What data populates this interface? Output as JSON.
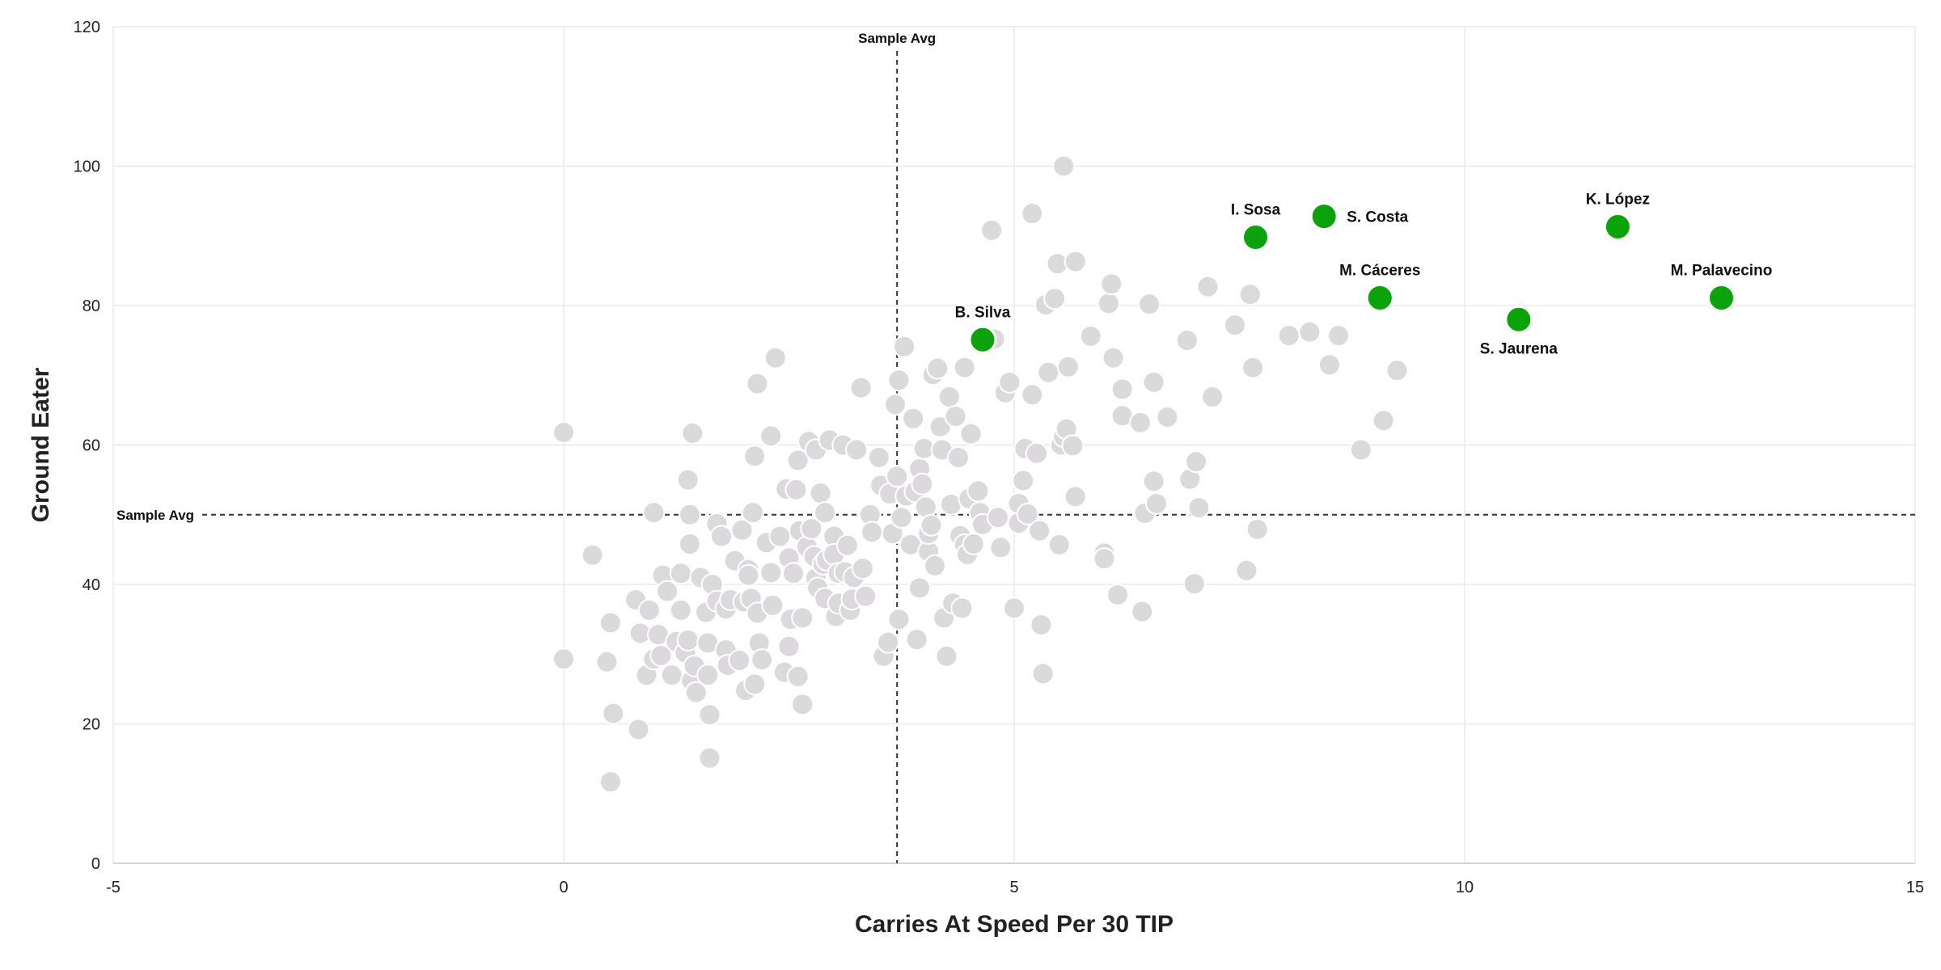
{
  "chart_data": {
    "type": "scatter",
    "xlabel": "Carries At Speed Per 30 TIP",
    "ylabel": "Ground Eater",
    "xlim": [
      -5,
      15
    ],
    "ylim": [
      0,
      120
    ],
    "xticks": [
      "-5",
      "0",
      "5",
      "10",
      "15"
    ],
    "yticks": [
      "0",
      "20",
      "40",
      "60",
      "80",
      "100",
      "120"
    ],
    "grid": true,
    "colors": {
      "background_points": "#dcd9dc",
      "highlight_points": "#0aa30a"
    },
    "reference_lines": {
      "x_avg": {
        "value": 3.7,
        "label": "Sample Avg"
      },
      "y_avg": {
        "value": 50,
        "label": "Sample Avg"
      }
    },
    "highlighted": [
      {
        "name": "B. Silva",
        "x": 4.65,
        "y": 75.1,
        "label_pos": "above"
      },
      {
        "name": "I. Sosa",
        "x": 7.68,
        "y": 89.8,
        "label_pos": "above"
      },
      {
        "name": "S. Costa",
        "x": 8.44,
        "y": 92.8,
        "label_pos": "right"
      },
      {
        "name": "M. Cáceres",
        "x": 9.06,
        "y": 81.1,
        "label_pos": "above"
      },
      {
        "name": "S. Jaurena",
        "x": 10.6,
        "y": 78.0,
        "label_pos": "below"
      },
      {
        "name": "K. López",
        "x": 11.7,
        "y": 91.3,
        "label_pos": "above"
      },
      {
        "name": "M. Palavecino",
        "x": 12.85,
        "y": 81.1,
        "label_pos": "above"
      }
    ],
    "points": [
      [
        0.0,
        61.8
      ],
      [
        0.0,
        29.3
      ],
      [
        0.32,
        44.2
      ],
      [
        0.48,
        28.9
      ],
      [
        0.52,
        34.5
      ],
      [
        0.55,
        21.5
      ],
      [
        0.52,
        11.7
      ],
      [
        0.83,
        19.2
      ],
      [
        0.8,
        37.8
      ],
      [
        0.85,
        33.0
      ],
      [
        0.92,
        27.0
      ],
      [
        0.95,
        36.3
      ],
      [
        1.0,
        29.3
      ],
      [
        1.0,
        50.3
      ],
      [
        1.05,
        32.8
      ],
      [
        1.08,
        29.8
      ],
      [
        1.1,
        41.3
      ],
      [
        1.15,
        39.0
      ],
      [
        1.2,
        27.0
      ],
      [
        1.25,
        31.8
      ],
      [
        1.3,
        36.3
      ],
      [
        1.3,
        41.6
      ],
      [
        1.35,
        30.2
      ],
      [
        1.38,
        32.0
      ],
      [
        1.38,
        55.0
      ],
      [
        1.4,
        45.8
      ],
      [
        1.4,
        50.0
      ],
      [
        1.42,
        26.2
      ],
      [
        1.43,
        61.7
      ],
      [
        1.45,
        28.3
      ],
      [
        1.47,
        24.5
      ],
      [
        1.52,
        41.0
      ],
      [
        1.58,
        36.0
      ],
      [
        1.6,
        31.6
      ],
      [
        1.6,
        27.0
      ],
      [
        1.62,
        15.1
      ],
      [
        1.62,
        21.3
      ],
      [
        1.65,
        40.0
      ],
      [
        1.7,
        37.6
      ],
      [
        1.7,
        48.7
      ],
      [
        1.75,
        46.9
      ],
      [
        1.8,
        36.5
      ],
      [
        1.8,
        30.6
      ],
      [
        1.82,
        28.4
      ],
      [
        1.85,
        37.8
      ],
      [
        1.9,
        43.4
      ],
      [
        1.95,
        29.1
      ],
      [
        1.98,
        47.8
      ],
      [
        2.0,
        37.5
      ],
      [
        2.02,
        24.8
      ],
      [
        2.05,
        42.1
      ],
      [
        2.05,
        41.3
      ],
      [
        2.08,
        38.0
      ],
      [
        2.1,
        50.3
      ],
      [
        2.12,
        58.4
      ],
      [
        2.12,
        25.7
      ],
      [
        2.15,
        68.8
      ],
      [
        2.15,
        35.9
      ],
      [
        2.17,
        31.6
      ],
      [
        2.2,
        29.2
      ],
      [
        2.25,
        46.0
      ],
      [
        2.3,
        41.7
      ],
      [
        2.3,
        61.3
      ],
      [
        2.32,
        37.0
      ],
      [
        2.35,
        72.5
      ],
      [
        2.4,
        46.9
      ],
      [
        2.45,
        27.4
      ],
      [
        2.47,
        53.7
      ],
      [
        2.5,
        43.8
      ],
      [
        2.5,
        31.1
      ],
      [
        2.52,
        35.0
      ],
      [
        2.55,
        41.6
      ],
      [
        2.58,
        53.6
      ],
      [
        2.6,
        26.8
      ],
      [
        2.6,
        57.8
      ],
      [
        2.62,
        47.7
      ],
      [
        2.65,
        35.2
      ],
      [
        2.65,
        22.8
      ],
      [
        2.7,
        45.4
      ],
      [
        2.72,
        60.5
      ],
      [
        2.75,
        48.0
      ],
      [
        2.78,
        44.0
      ],
      [
        2.8,
        40.9
      ],
      [
        2.8,
        59.3
      ],
      [
        2.82,
        39.5
      ],
      [
        2.85,
        53.1
      ],
      [
        2.88,
        42.9
      ],
      [
        2.9,
        50.3
      ],
      [
        2.9,
        38.0
      ],
      [
        2.92,
        43.5
      ],
      [
        2.95,
        60.7
      ],
      [
        3.0,
        46.9
      ],
      [
        3.0,
        44.3
      ],
      [
        3.02,
        35.4
      ],
      [
        3.05,
        41.6
      ],
      [
        3.05,
        37.3
      ],
      [
        3.1,
        60.0
      ],
      [
        3.12,
        41.8
      ],
      [
        3.15,
        45.6
      ],
      [
        3.18,
        36.3
      ],
      [
        3.2,
        37.9
      ],
      [
        3.22,
        41.0
      ],
      [
        3.25,
        59.3
      ],
      [
        3.3,
        68.2
      ],
      [
        3.32,
        42.3
      ],
      [
        3.35,
        38.3
      ],
      [
        3.4,
        50.0
      ],
      [
        3.42,
        47.5
      ],
      [
        3.5,
        58.2
      ],
      [
        3.52,
        54.2
      ],
      [
        3.55,
        29.7
      ],
      [
        3.6,
        31.7
      ],
      [
        3.62,
        53.0
      ],
      [
        3.65,
        47.3
      ],
      [
        3.68,
        65.8
      ],
      [
        3.7,
        55.5
      ],
      [
        3.72,
        69.3
      ],
      [
        3.72,
        35.0
      ],
      [
        3.75,
        49.6
      ],
      [
        3.78,
        74.1
      ],
      [
        3.8,
        52.7
      ],
      [
        3.85,
        45.7
      ],
      [
        3.88,
        63.8
      ],
      [
        3.9,
        53.3
      ],
      [
        3.92,
        32.1
      ],
      [
        3.95,
        56.6
      ],
      [
        3.95,
        39.5
      ],
      [
        3.98,
        54.4
      ],
      [
        4.0,
        59.5
      ],
      [
        4.02,
        51.1
      ],
      [
        4.05,
        44.7
      ],
      [
        4.05,
        47.3
      ],
      [
        4.08,
        48.5
      ],
      [
        4.1,
        70.1
      ],
      [
        4.12,
        42.7
      ],
      [
        4.15,
        71.0
      ],
      [
        4.18,
        62.6
      ],
      [
        4.2,
        59.3
      ],
      [
        4.22,
        35.2
      ],
      [
        4.25,
        29.7
      ],
      [
        4.28,
        66.9
      ],
      [
        4.3,
        51.5
      ],
      [
        4.32,
        37.3
      ],
      [
        4.35,
        64.1
      ],
      [
        4.38,
        58.2
      ],
      [
        4.4,
        47.0
      ],
      [
        4.42,
        36.6
      ],
      [
        4.45,
        45.7
      ],
      [
        4.45,
        71.1
      ],
      [
        4.48,
        44.3
      ],
      [
        4.5,
        52.3
      ],
      [
        4.52,
        61.6
      ],
      [
        4.55,
        45.8
      ],
      [
        4.6,
        53.4
      ],
      [
        4.62,
        50.3
      ],
      [
        4.65,
        48.6
      ],
      [
        4.75,
        90.8
      ],
      [
        4.78,
        75.2
      ],
      [
        4.82,
        49.6
      ],
      [
        4.85,
        45.3
      ],
      [
        4.9,
        67.5
      ],
      [
        4.95,
        69.0
      ],
      [
        5.0,
        36.6
      ],
      [
        5.05,
        51.6
      ],
      [
        5.05,
        48.8
      ],
      [
        5.1,
        54.9
      ],
      [
        5.12,
        59.5
      ],
      [
        5.15,
        50.1
      ],
      [
        5.2,
        67.2
      ],
      [
        5.2,
        93.2
      ],
      [
        5.25,
        58.8
      ],
      [
        5.28,
        47.7
      ],
      [
        5.3,
        34.2
      ],
      [
        5.32,
        27.2
      ],
      [
        5.35,
        80.1
      ],
      [
        5.38,
        70.4
      ],
      [
        5.45,
        81.0
      ],
      [
        5.48,
        86.0
      ],
      [
        5.5,
        45.7
      ],
      [
        5.52,
        60.0
      ],
      [
        5.55,
        61.2
      ],
      [
        5.55,
        100.0
      ],
      [
        5.58,
        62.3
      ],
      [
        5.6,
        71.2
      ],
      [
        5.65,
        59.9
      ],
      [
        5.68,
        52.6
      ],
      [
        5.68,
        86.3
      ],
      [
        5.85,
        75.6
      ],
      [
        6.0,
        44.5
      ],
      [
        6.0,
        43.7
      ],
      [
        6.05,
        80.3
      ],
      [
        6.08,
        83.1
      ],
      [
        6.1,
        72.5
      ],
      [
        6.15,
        38.5
      ],
      [
        6.2,
        68.0
      ],
      [
        6.2,
        64.2
      ],
      [
        6.4,
        63.2
      ],
      [
        6.42,
        36.1
      ],
      [
        6.45,
        50.2
      ],
      [
        6.5,
        80.2
      ],
      [
        6.55,
        69.0
      ],
      [
        6.55,
        54.8
      ],
      [
        6.58,
        51.6
      ],
      [
        6.7,
        64.0
      ],
      [
        6.92,
        75.0
      ],
      [
        6.95,
        55.1
      ],
      [
        7.0,
        40.1
      ],
      [
        7.02,
        57.6
      ],
      [
        7.05,
        51.0
      ],
      [
        7.15,
        82.7
      ],
      [
        7.2,
        66.9
      ],
      [
        7.45,
        77.2
      ],
      [
        7.58,
        42.0
      ],
      [
        7.62,
        81.6
      ],
      [
        7.65,
        71.1
      ],
      [
        7.7,
        47.9
      ],
      [
        8.05,
        75.7
      ],
      [
        8.28,
        76.2
      ],
      [
        8.5,
        71.5
      ],
      [
        8.6,
        75.7
      ],
      [
        8.85,
        59.3
      ],
      [
        9.1,
        63.5
      ],
      [
        9.25,
        70.7
      ]
    ]
  }
}
